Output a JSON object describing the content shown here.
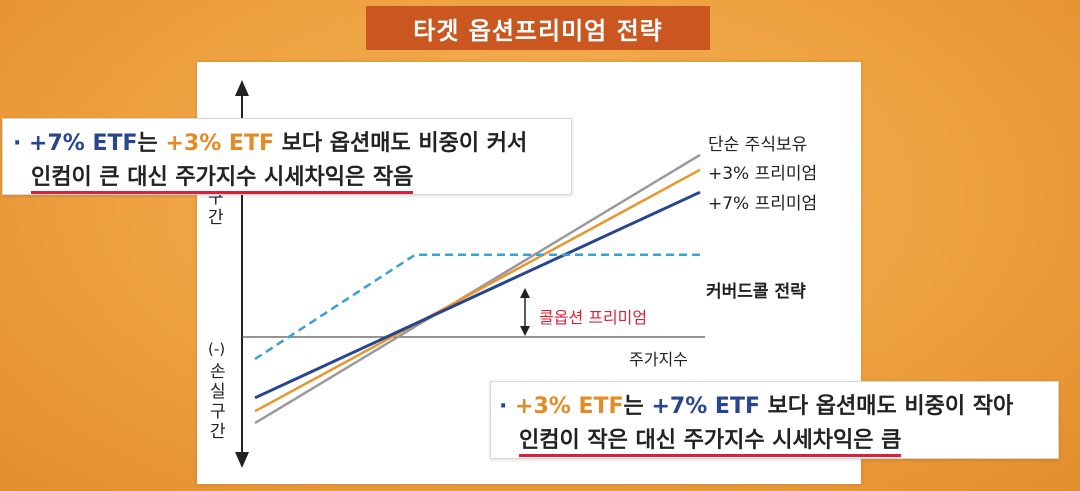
{
  "title": "타겟 옵션프리미엄 전략",
  "callout_top": {
    "bullet": "·",
    "plus7": "+7% ETF",
    "neun": "는",
    "plus3": "+3% ETF",
    "rest": "보다 옵션매도 비중이 커서",
    "line2": "인컴이 큰 대신 주가지수 시세차익은 작음"
  },
  "callout_bottom": {
    "bullet": "·",
    "plus3": "+3% ETF",
    "neun": "는",
    "plus7": "+7% ETF",
    "rest": "보다 옵션매도 비중이 작아",
    "line2": "인컴이 작은 대신 주가지수 시세차익은 큼"
  },
  "axis": {
    "y_top_partial": "구간",
    "y_bottom": "(-) 손실구간",
    "y_bottom_sign": "(-)",
    "y_bottom_word": "손실구간",
    "x_label": "주가지수"
  },
  "annotation": "콜옵션 프리미엄",
  "colors": {
    "stock": "#9a9a9a",
    "plus3": "#e8962e",
    "plus7": "#27468f",
    "covered": "#3aa0d6",
    "accent_red": "#d8223b"
  },
  "chart_data": {
    "type": "line",
    "x": [
      0,
      10
    ],
    "series": [
      {
        "name": "단순 주식보유",
        "values": [
          -9.0,
          9.0
        ]
      },
      {
        "name": "+3% 프리미엄",
        "values": [
          -8.2,
          8.0
        ]
      },
      {
        "name": "+7% 프리미엄",
        "values": [
          -7.3,
          6.5
        ]
      },
      {
        "name": "커버드콜 전략",
        "x": [
          0,
          3.6,
          10
        ],
        "values": [
          -4.7,
          2.3,
          2.3
        ]
      }
    ],
    "xlim": [
      0,
      10
    ],
    "ylim": [
      -10,
      10
    ],
    "grid": false
  }
}
